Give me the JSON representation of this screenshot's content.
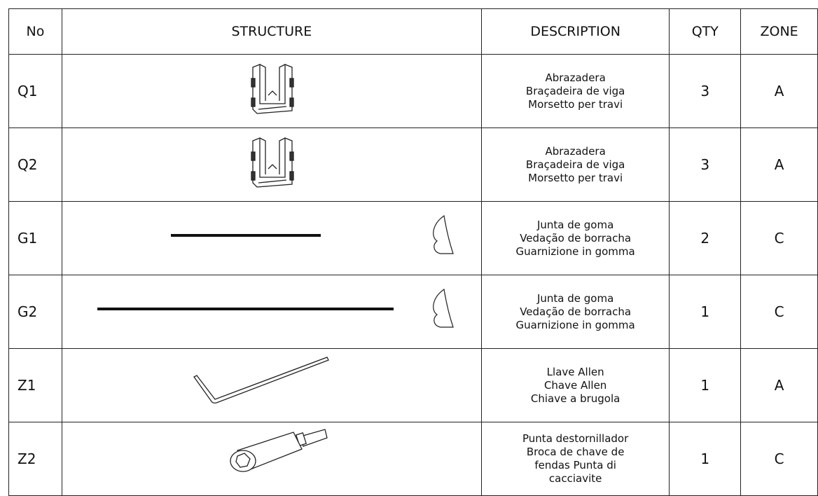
{
  "table": {
    "header": [
      "No",
      "STRUCTURE",
      "DESCRIPTION",
      "QTY",
      "ZONE"
    ],
    "rows": [
      {
        "no": "Q1",
        "description": [
          "Abrazadera",
          "Braçadeira de viga",
          "Morsetto per travi"
        ],
        "qty": 3,
        "zone": "A"
      },
      {
        "no": "Q2",
        "description": [
          "Abrazadera",
          "Braçadeira de viga",
          "Morsetto per travi"
        ],
        "qty": 3,
        "zone": "A"
      },
      {
        "no": "G1",
        "description": [
          "Junta de goma",
          "Vedação de borracha",
          "Guarnizione in gomma"
        ],
        "qty": 2,
        "zone": "C"
      },
      {
        "no": "G2",
        "description": [
          "Junta de goma",
          "Vedação de borracha",
          "Guarnizione in gomma"
        ],
        "qty": 1,
        "zone": "C"
      },
      {
        "no": "Z1",
        "description": [
          "Llave Allen",
          "Chave Allen",
          "Chiave a brugola"
        ],
        "qty": 1,
        "zone": "A"
      },
      {
        "no": "Z2",
        "description": [
          "Punta destornillador",
          "Broca de chave de",
          "fendas Punta di",
          "cacciavite"
        ],
        "qty": 1,
        "zone": "C"
      }
    ]
  }
}
